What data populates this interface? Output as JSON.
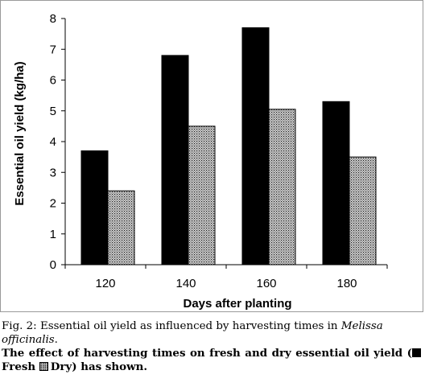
{
  "chart_data": {
    "type": "bar",
    "categories": [
      "120",
      "140",
      "160",
      "180"
    ],
    "series": [
      {
        "name": "Fresh",
        "values": [
          3.7,
          6.8,
          7.7,
          5.3
        ],
        "color": "#000000",
        "pattern": "solid"
      },
      {
        "name": "Dry",
        "values": [
          2.4,
          4.5,
          5.05,
          3.5
        ],
        "color": "#c8c8c8",
        "pattern": "dotted"
      }
    ],
    "xlabel": "Days after planting",
    "ylabel": "Essential oil yield (kg/ha)",
    "ylim": [
      0,
      8
    ],
    "yticks": [
      "0",
      "1",
      "2",
      "3",
      "4",
      "5",
      "6",
      "7",
      "8"
    ],
    "grid": false,
    "legend": "none"
  },
  "caption": {
    "figure_label": "Fig. 2: Essential oil yield as influenced by harvesting times in ",
    "species": "Melissa officinalis",
    "figure_end": ".",
    "desc_part1": "The effect of harvesting times on fresh and dry essential oil yield (",
    "fresh_label": "Fresh",
    "dry_label": "Dry",
    "desc_part2": ") has shown."
  }
}
